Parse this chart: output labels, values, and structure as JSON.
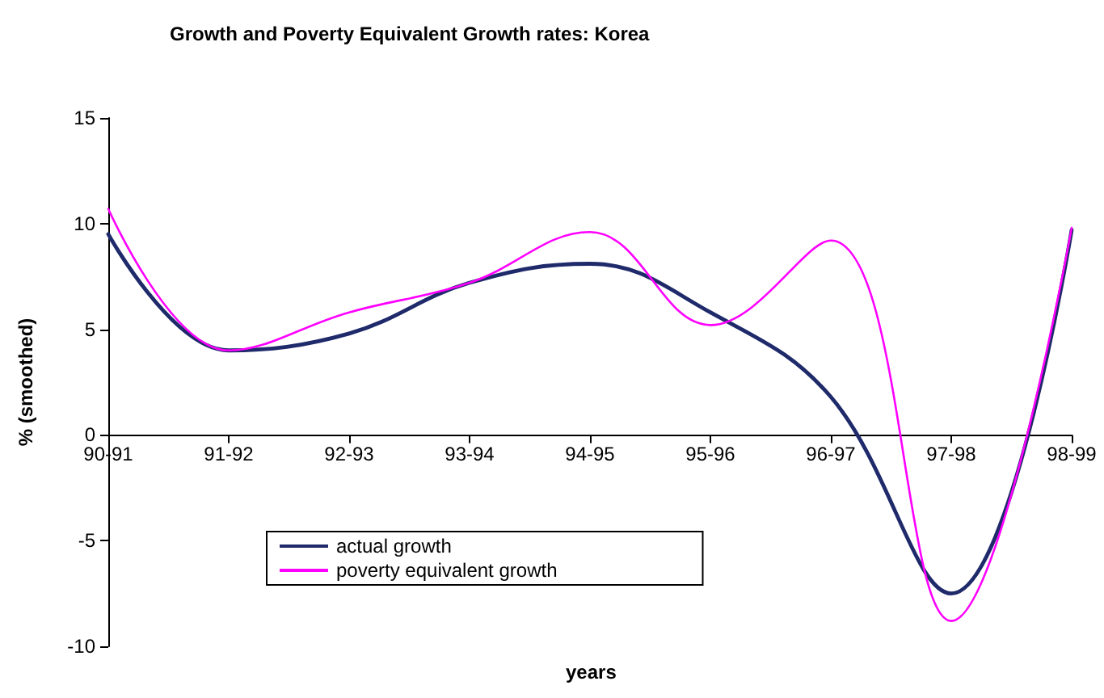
{
  "chart_data": {
    "type": "line",
    "title": "Growth and Poverty Equivalent Growth rates: Korea",
    "xlabel": "years",
    "ylabel": "% (smoothed)",
    "categories": [
      "90-91",
      "91-92",
      "92-93",
      "93-94",
      "94-95",
      "95-96",
      "96-97",
      "97-98",
      "98-99"
    ],
    "ylim": [
      -10,
      15
    ],
    "yticks": [
      -10,
      -5,
      0,
      5,
      10,
      15
    ],
    "grid": false,
    "legend": "bottom left",
    "marker": "none",
    "line_style": "solid",
    "series": [
      {
        "name": "actual growth",
        "color": "#1f2a6b",
        "values": [
          9.5,
          4.0,
          4.8,
          7.2,
          8.1,
          5.8,
          1.8,
          -7.5,
          9.7
        ]
      },
      {
        "name": "poverty equivalent growth",
        "color": "#ff00ff",
        "values": [
          10.7,
          4.0,
          5.8,
          7.2,
          9.6,
          5.2,
          9.2,
          -8.8,
          9.8
        ]
      }
    ]
  }
}
